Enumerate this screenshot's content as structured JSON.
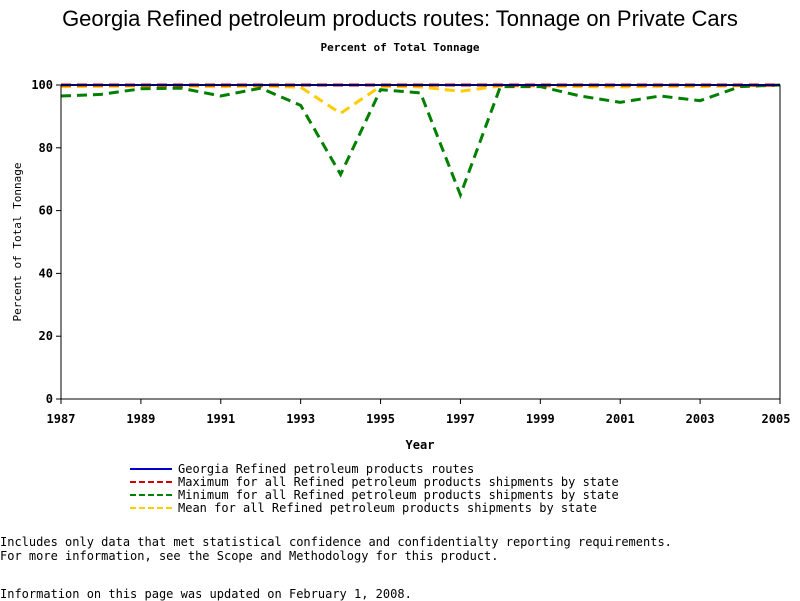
{
  "title": "Georgia Refined petroleum products routes: Tonnage on Private Cars",
  "subtitle": "Percent of Total Tonnage",
  "notes": [
    "Includes only data that met statistical confidence and confidentialty reporting requirements.",
    "For more information, see the Scope and Methodology for this product."
  ],
  "updated": "Information on this page was updated on February 1, 2008.",
  "chart_data": {
    "type": "line",
    "title": "Georgia Refined petroleum products routes: Tonnage on Private Cars",
    "subtitle": "Percent of Total Tonnage",
    "xlabel": "Year",
    "ylabel": "Percent of Total Tonnage",
    "xlim": [
      1987,
      2005
    ],
    "ylim": [
      0,
      100
    ],
    "x_ticks": [
      "1987",
      "1989",
      "1991",
      "1993",
      "1995",
      "1997",
      "1999",
      "2001",
      "2003",
      "2005"
    ],
    "y_ticks": [
      "0",
      "20",
      "40",
      "60",
      "80",
      "100"
    ],
    "grid": false,
    "legend_position": "bottom",
    "x": [
      1987,
      1988,
      1989,
      1990,
      1991,
      1992,
      1993,
      1994,
      1995,
      1996,
      1997,
      1998,
      1999,
      2000,
      2001,
      2002,
      2003,
      2004,
      2005
    ],
    "series": [
      {
        "name": "Georgia Refined petroleum products routes",
        "color": "#0000cc",
        "dash": "solid",
        "values": [
          100,
          100,
          100,
          100,
          100,
          100,
          100,
          100,
          100,
          100,
          100,
          100,
          100,
          100,
          100,
          100,
          100,
          100,
          100
        ]
      },
      {
        "name": "Maximum for all Refined petroleum products shipments by state",
        "color": "#cc0000",
        "dash": "dashed",
        "values": [
          100,
          100,
          100,
          100,
          100,
          100,
          100,
          100,
          100,
          100,
          100,
          100,
          100,
          100,
          100,
          100,
          100,
          100,
          100
        ]
      },
      {
        "name": "Minimum for all Refined petroleum products shipments by state",
        "color": "#008000",
        "dash": "dashed",
        "values": [
          96.5,
          97,
          98.8,
          99,
          96.5,
          99,
          93.5,
          71.5,
          98.5,
          97.5,
          65,
          99.5,
          99.5,
          96.5,
          94.5,
          96.5,
          95,
          99.5,
          100
        ]
      },
      {
        "name": "Mean for all Refined petroleum products shipments by state",
        "color": "#ffcc00",
        "dash": "dashed",
        "values": [
          99.5,
          99.6,
          99.7,
          99.7,
          99.5,
          99.7,
          99.3,
          91,
          99.6,
          99.4,
          98,
          99.7,
          99.7,
          99.5,
          99.4,
          99.6,
          99.5,
          99.8,
          99.9
        ]
      }
    ]
  }
}
